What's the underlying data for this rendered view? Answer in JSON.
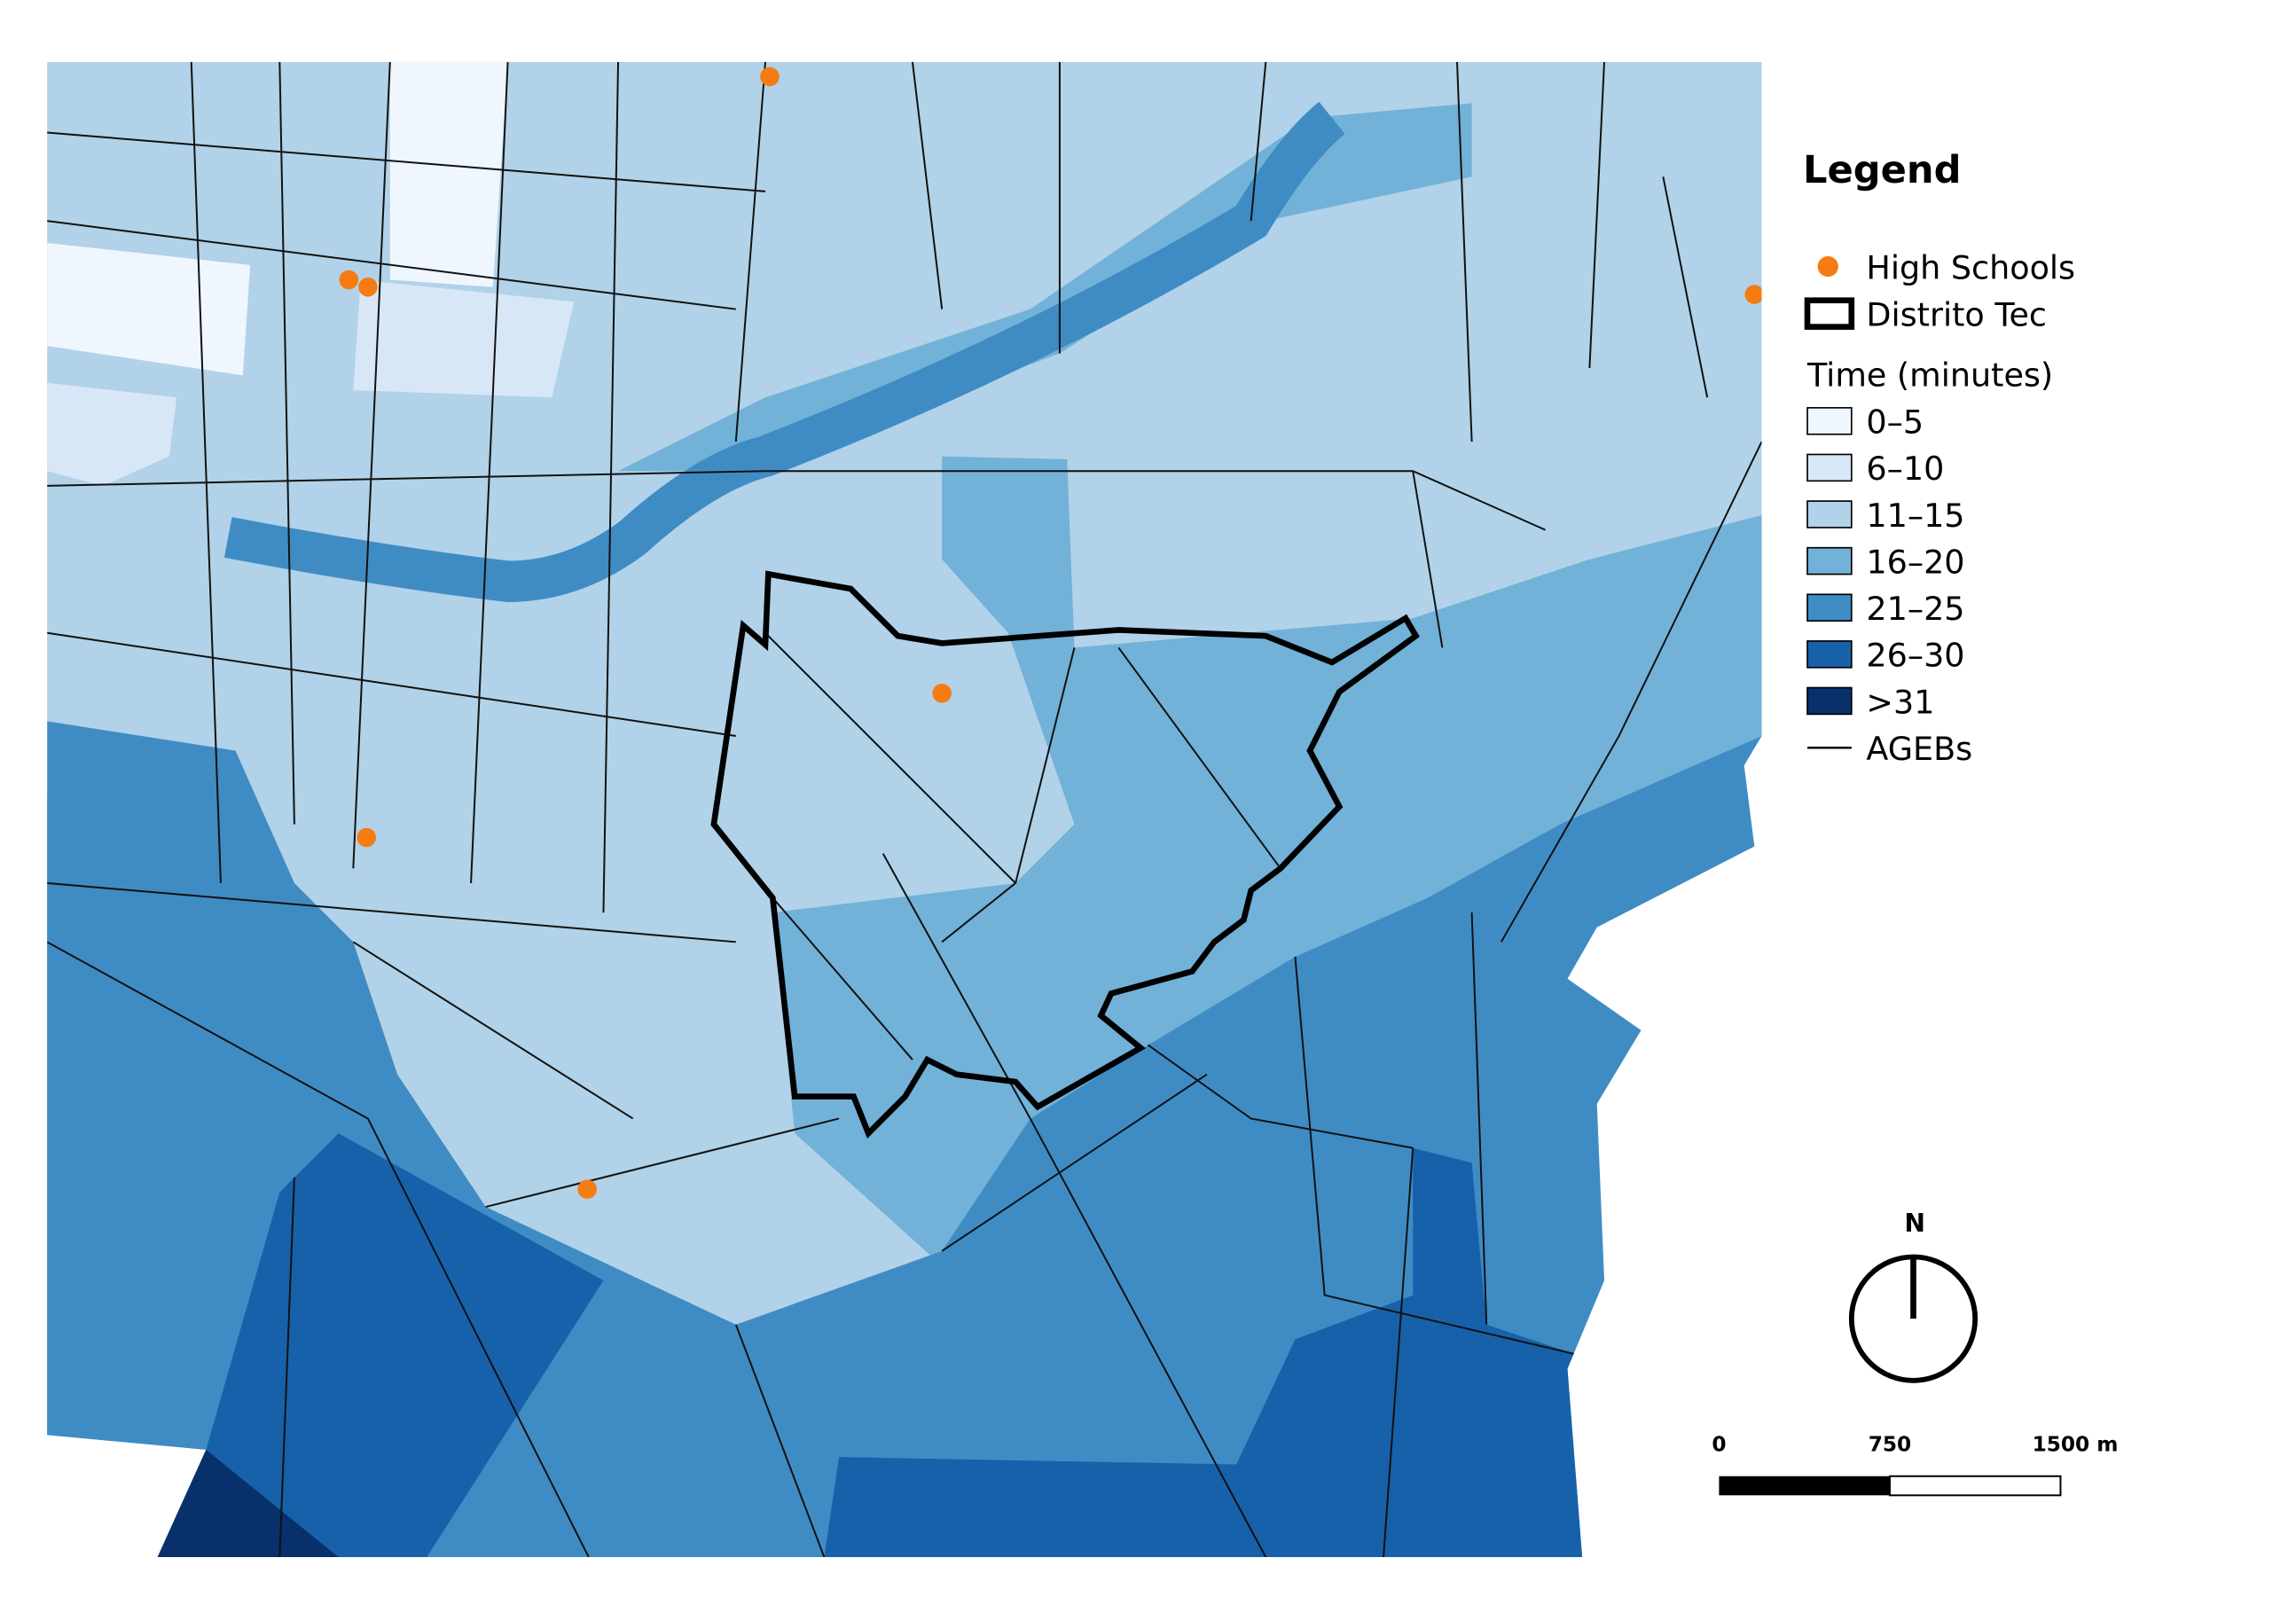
{
  "legend": {
    "title": "Legend",
    "high_schools": "High Schools",
    "district": "Distrito Tec",
    "time_title": "Time (minutes)",
    "classes": [
      {
        "label": "0–5",
        "color": "#eff6fd"
      },
      {
        "label": "6–10",
        "color": "#d8e7f6"
      },
      {
        "label": "11–15",
        "color": "#b1d2e8"
      },
      {
        "label": "16–20",
        "color": "#72b1d8"
      },
      {
        "label": "21–25",
        "color": "#3f8cc5"
      },
      {
        "label": "26–30",
        "color": "#1761ab"
      },
      {
        "label": ">31",
        "color": "#08306b"
      }
    ],
    "agebs": "AGEBs"
  },
  "north": "N",
  "scale_bar": {
    "labels": [
      "0",
      "750",
      "1500 m"
    ]
  }
}
